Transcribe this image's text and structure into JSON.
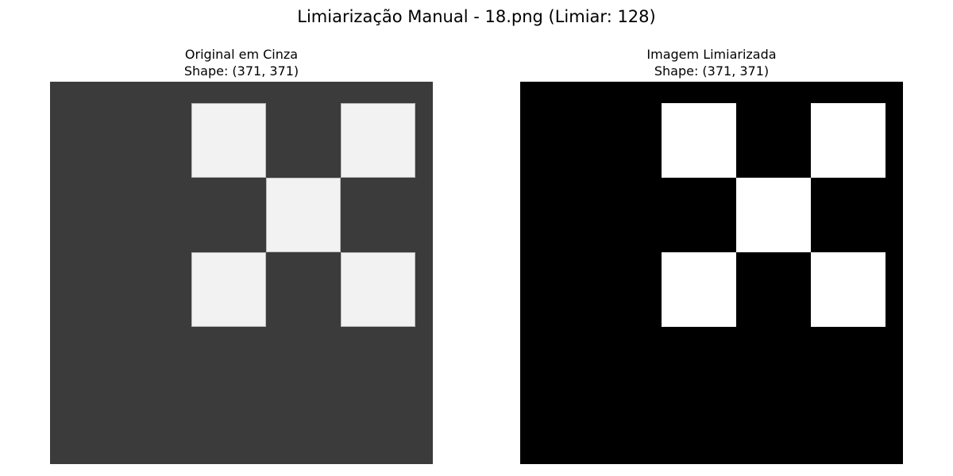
{
  "figure": {
    "title": "Limiarização Manual - 18.png (Limiar: 128)"
  },
  "panels": [
    {
      "title": "Original em Cinza",
      "shape_label": "Shape: (371, 371)",
      "colors": {
        "background": "#3b3b3b",
        "square": "#f2f2f2"
      }
    },
    {
      "title": "Imagem Limiarizada",
      "shape_label": "Shape: (371, 371)",
      "colors": {
        "background": "#000000",
        "square": "#ffffff"
      }
    }
  ]
}
